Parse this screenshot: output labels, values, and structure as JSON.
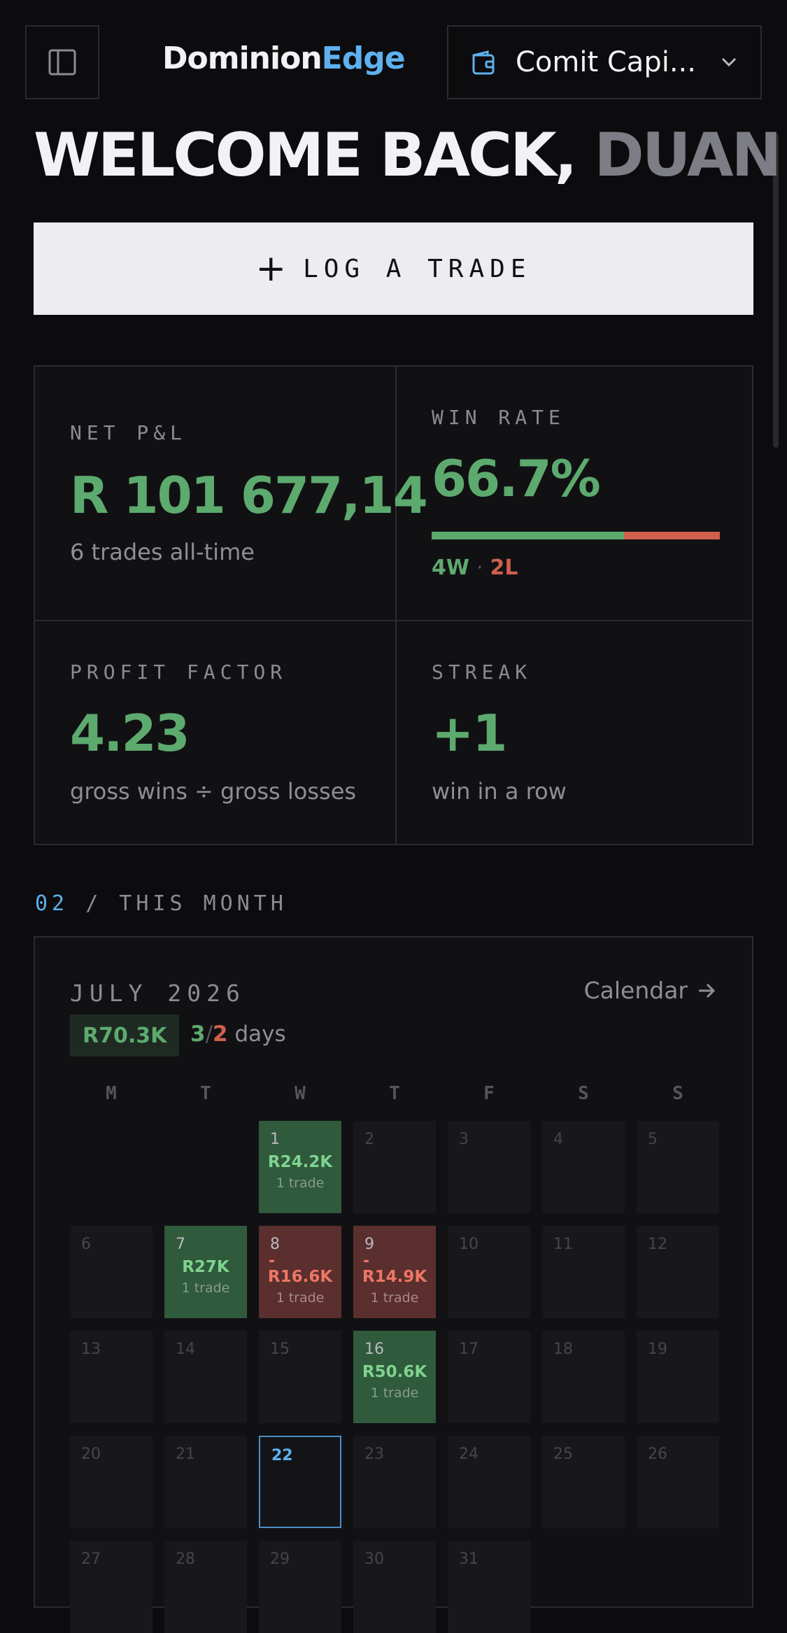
{
  "header": {
    "logo_main": "Dominion",
    "logo_accent": "Edge",
    "account_name": "Comit Capi...",
    "sidebar_icon": "sidebar-toggle-icon",
    "wallet_icon": "wallet-icon",
    "chevron_icon": "chevron-down-icon"
  },
  "welcome": {
    "greeting": "WELCOME BACK,",
    "name": "DUAN"
  },
  "log_trade": {
    "label": "LOG A TRADE"
  },
  "stats": {
    "net_pnl": {
      "label": "NET P&L",
      "value": "R 101 677,14",
      "sub": "6 trades all-time"
    },
    "win_rate": {
      "label": "WIN RATE",
      "value": "66.7%",
      "wins": "4W",
      "losses": "2L",
      "fraction": 0.667
    },
    "profit_factor": {
      "label": "PROFIT FACTOR",
      "value": "4.23",
      "sub": "gross wins ÷ gross losses"
    },
    "streak": {
      "label": "STREAK",
      "value": "+1",
      "sub": "win in a row"
    }
  },
  "section": {
    "number": "02",
    "title": "/ THIS MONTH"
  },
  "calendar": {
    "month": "JULY 2026",
    "link_label": "Calendar",
    "month_pnl": "R70.3K",
    "green_days": "3",
    "red_days": "2",
    "days_label": "days",
    "weekdays": [
      "M",
      "T",
      "W",
      "T",
      "F",
      "S",
      "S"
    ],
    "days": [
      {
        "d": "1",
        "status": "win",
        "pnl": "R24.2K",
        "trades": "1 trade"
      },
      {
        "d": "2"
      },
      {
        "d": "3"
      },
      {
        "d": "4"
      },
      {
        "d": "5"
      },
      {
        "d": "6"
      },
      {
        "d": "7",
        "status": "win",
        "pnl": "R27K",
        "trades": "1 trade"
      },
      {
        "d": "8",
        "status": "loss",
        "sign": "-",
        "pnl": "R16.6K",
        "trades": "1 trade"
      },
      {
        "d": "9",
        "status": "loss",
        "sign": "-",
        "pnl": "R14.9K",
        "trades": "1 trade"
      },
      {
        "d": "10"
      },
      {
        "d": "11"
      },
      {
        "d": "12"
      },
      {
        "d": "13"
      },
      {
        "d": "14"
      },
      {
        "d": "15"
      },
      {
        "d": "16",
        "status": "win",
        "pnl": "R50.6K",
        "trades": "1 trade"
      },
      {
        "d": "17"
      },
      {
        "d": "18"
      },
      {
        "d": "19"
      },
      {
        "d": "20"
      },
      {
        "d": "21"
      },
      {
        "d": "22",
        "status": "today"
      },
      {
        "d": "23"
      },
      {
        "d": "24"
      },
      {
        "d": "25"
      },
      {
        "d": "26"
      },
      {
        "d": "27"
      },
      {
        "d": "28"
      },
      {
        "d": "29"
      },
      {
        "d": "30"
      },
      {
        "d": "31"
      }
    ]
  }
}
